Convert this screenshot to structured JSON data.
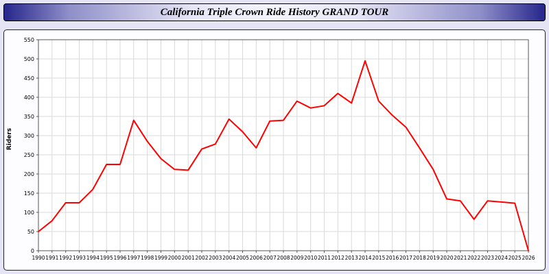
{
  "window": {
    "title": "California Triple Crown Ride History GRAND TOUR"
  },
  "chart_data": {
    "type": "line",
    "title": "California Triple Crown Ride History GRAND TOUR",
    "xlabel": "",
    "ylabel": "Riders",
    "ylim": [
      0,
      550
    ],
    "ytick_step": 50,
    "grid": true,
    "legend_position": "none",
    "x": [
      1990,
      1991,
      1992,
      1993,
      1994,
      1995,
      1996,
      1997,
      1998,
      1999,
      2000,
      2001,
      2002,
      2003,
      2004,
      2005,
      2006,
      2007,
      2008,
      2009,
      2010,
      2011,
      2012,
      2013,
      2014,
      2015,
      2016,
      2017,
      2018,
      2019,
      2020,
      2021,
      2022,
      2023,
      2024,
      2025,
      2026
    ],
    "series": [
      {
        "name": "Riders",
        "color": "#ff0000",
        "values": [
          50,
          78,
          125,
          125,
          160,
          225,
          225,
          340,
          285,
          240,
          212,
          210,
          265,
          278,
          343,
          310,
          268,
          338,
          340,
          390,
          372,
          378,
          410,
          385,
          495,
          390,
          353,
          322,
          268,
          212,
          135,
          130,
          82,
          130,
          127,
          124,
          0
        ]
      }
    ]
  },
  "colors": {
    "page_background": "#e4e4f4",
    "panel_background": "#fdfdff",
    "plot_background": "#ffffff",
    "gridline": "#d9d9d9",
    "axis": "#555555",
    "line": "#ff0000",
    "title_bar_edge": "#26268c"
  }
}
